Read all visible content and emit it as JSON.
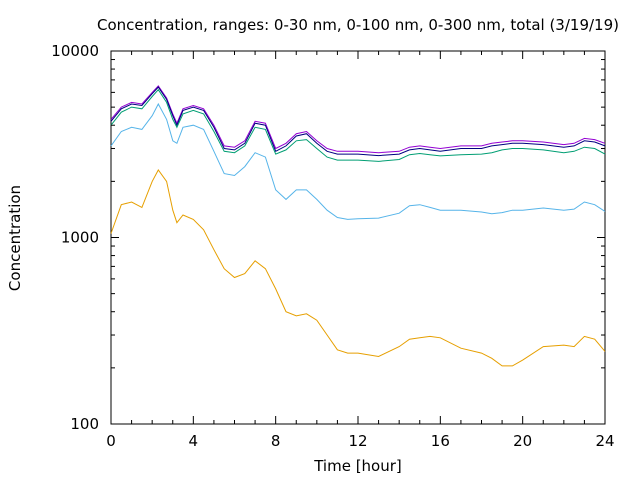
{
  "chart_data": {
    "type": "line",
    "title": "Concentration, ranges: 0-30 nm, 0-100 nm, 0-300 nm, total (3/19/19)",
    "xlabel": "Time [hour]",
    "ylabel": "Concentration",
    "xlim": [
      0,
      24
    ],
    "ylim": [
      100,
      10000
    ],
    "yscale": "log",
    "grid": false,
    "legend": "none",
    "x_ticks": [
      "0",
      "4",
      "8",
      "12",
      "16",
      "20",
      "24"
    ],
    "y_ticks": [
      "100",
      "1000",
      "10000"
    ],
    "x": [
      0,
      0.5,
      1,
      1.5,
      2,
      2.3,
      2.7,
      3,
      3.2,
      3.5,
      4,
      4.5,
      5,
      5.5,
      6,
      6.5,
      7,
      7.5,
      8,
      8.5,
      9,
      9.5,
      10,
      10.5,
      11,
      11.5,
      12,
      13,
      14,
      14.5,
      15,
      15.5,
      16,
      17,
      18,
      18.5,
      19,
      19.5,
      20,
      21,
      22,
      22.5,
      23,
      23.5,
      24
    ],
    "series": [
      {
        "color": "#9400d3",
        "values": [
          4300,
          5000,
          5300,
          5200,
          6000,
          6500,
          5600,
          4600,
          4100,
          4900,
          5100,
          4900,
          4000,
          3100,
          3050,
          3300,
          4200,
          4100,
          3000,
          3200,
          3600,
          3700,
          3300,
          3000,
          2900,
          2900,
          2900,
          2850,
          2900,
          3050,
          3100,
          3050,
          3000,
          3100,
          3100,
          3200,
          3250,
          3300,
          3300,
          3250,
          3150,
          3200,
          3400,
          3350,
          3200
        ]
      },
      {
        "color": "#000080",
        "values": [
          4200,
          4900,
          5200,
          5100,
          5900,
          6400,
          5500,
          4500,
          4000,
          4800,
          5000,
          4800,
          3900,
          3000,
          2950,
          3200,
          4100,
          4000,
          2900,
          3100,
          3500,
          3600,
          3200,
          2900,
          2800,
          2800,
          2800,
          2750,
          2800,
          2950,
          3000,
          2950,
          2900,
          3000,
          3000,
          3100,
          3150,
          3200,
          3200,
          3150,
          3050,
          3100,
          3300,
          3250,
          3100
        ]
      },
      {
        "color": "#009e73",
        "values": [
          4000,
          4700,
          5000,
          4900,
          5700,
          6200,
          5300,
          4300,
          3900,
          4600,
          4800,
          4600,
          3700,
          2900,
          2850,
          3100,
          3900,
          3800,
          2800,
          2950,
          3300,
          3350,
          3000,
          2700,
          2600,
          2600,
          2600,
          2560,
          2620,
          2780,
          2820,
          2780,
          2740,
          2780,
          2800,
          2850,
          2950,
          3000,
          3000,
          2950,
          2850,
          2900,
          3050,
          3000,
          2800
        ]
      },
      {
        "color": "#56b4e9",
        "values": [
          3100,
          3700,
          3900,
          3800,
          4500,
          5200,
          4300,
          3300,
          3200,
          3900,
          4000,
          3800,
          2900,
          2200,
          2150,
          2400,
          2850,
          2700,
          1800,
          1600,
          1800,
          1800,
          1600,
          1400,
          1280,
          1250,
          1260,
          1270,
          1350,
          1480,
          1500,
          1450,
          1400,
          1400,
          1370,
          1340,
          1360,
          1400,
          1400,
          1440,
          1400,
          1420,
          1550,
          1500,
          1380
        ]
      },
      {
        "color": "#e69f00",
        "values": [
          1050,
          1500,
          1550,
          1450,
          2000,
          2300,
          2000,
          1400,
          1200,
          1320,
          1250,
          1100,
          860,
          680,
          610,
          640,
          750,
          680,
          530,
          400,
          380,
          390,
          360,
          300,
          250,
          240,
          240,
          230,
          260,
          285,
          290,
          295,
          290,
          255,
          240,
          225,
          205,
          205,
          220,
          260,
          265,
          260,
          295,
          285,
          245
        ]
      }
    ]
  }
}
